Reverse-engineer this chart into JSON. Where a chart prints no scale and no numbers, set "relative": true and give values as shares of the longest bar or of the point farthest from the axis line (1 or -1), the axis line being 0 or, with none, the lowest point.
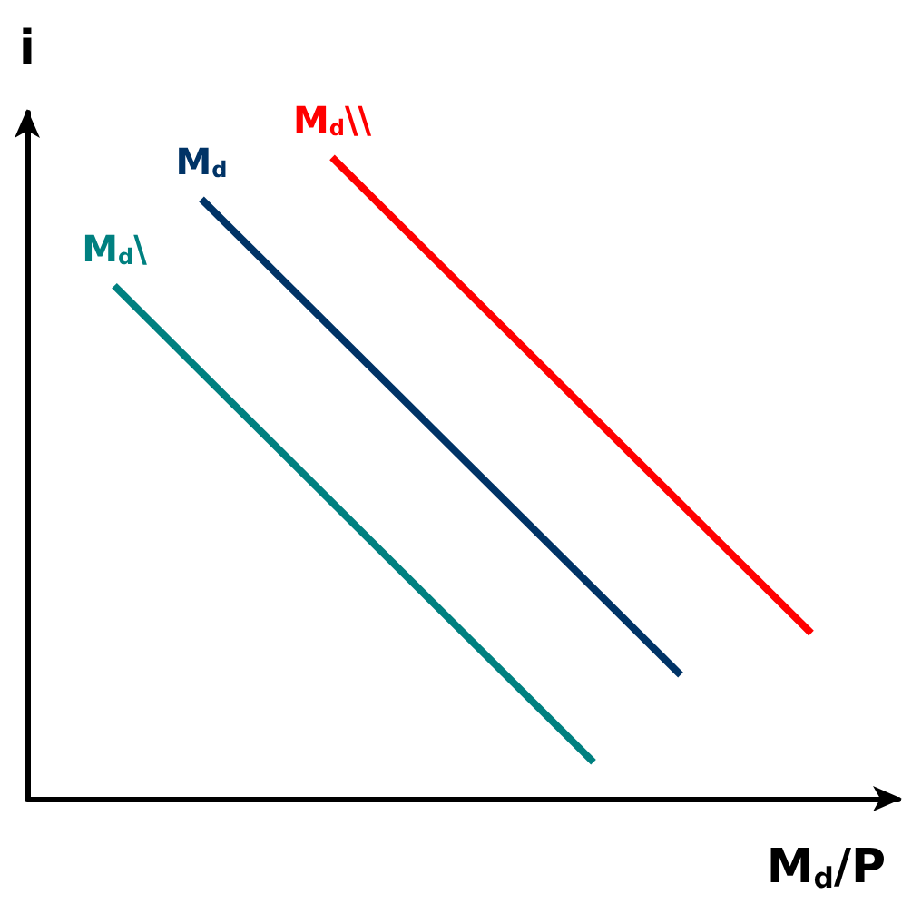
{
  "chart_data": {
    "type": "line",
    "relative": true,
    "xlabel": "M$_{d}$/P",
    "ylabel": "i",
    "tick_labels": false,
    "grid": false,
    "legend": false,
    "marker": "none",
    "line_style": "solid",
    "categories": [
      null,
      null,
      null,
      null,
      null,
      null,
      null,
      null,
      null,
      null,
      null,
      null,
      null,
      null,
      null,
      null,
      null,
      null,
      null,
      null,
      null
    ],
    "series": [
      {
        "name": "M$_{d}$\\",
        "color": "#008080",
        "values": [
          null,
          null,
          0.8,
          null,
          null,
          null,
          null,
          null,
          null,
          null,
          null,
          null,
          null,
          0.057,
          null,
          null,
          null,
          null,
          null,
          null,
          null
        ]
      },
      {
        "name": "M$_{d}$",
        "color": "#003366",
        "values": [
          null,
          null,
          null,
          null,
          0.935,
          null,
          null,
          null,
          null,
          null,
          null,
          null,
          null,
          null,
          null,
          0.193,
          null,
          null,
          null,
          null,
          null
        ]
      },
      {
        "name": "M$_{d}$\\\\",
        "color": "#ff0000",
        "values": [
          null,
          null,
          null,
          null,
          null,
          null,
          null,
          1,
          null,
          null,
          null,
          null,
          null,
          null,
          null,
          null,
          null,
          null,
          0.258,
          null,
          null
        ]
      }
    ]
  }
}
